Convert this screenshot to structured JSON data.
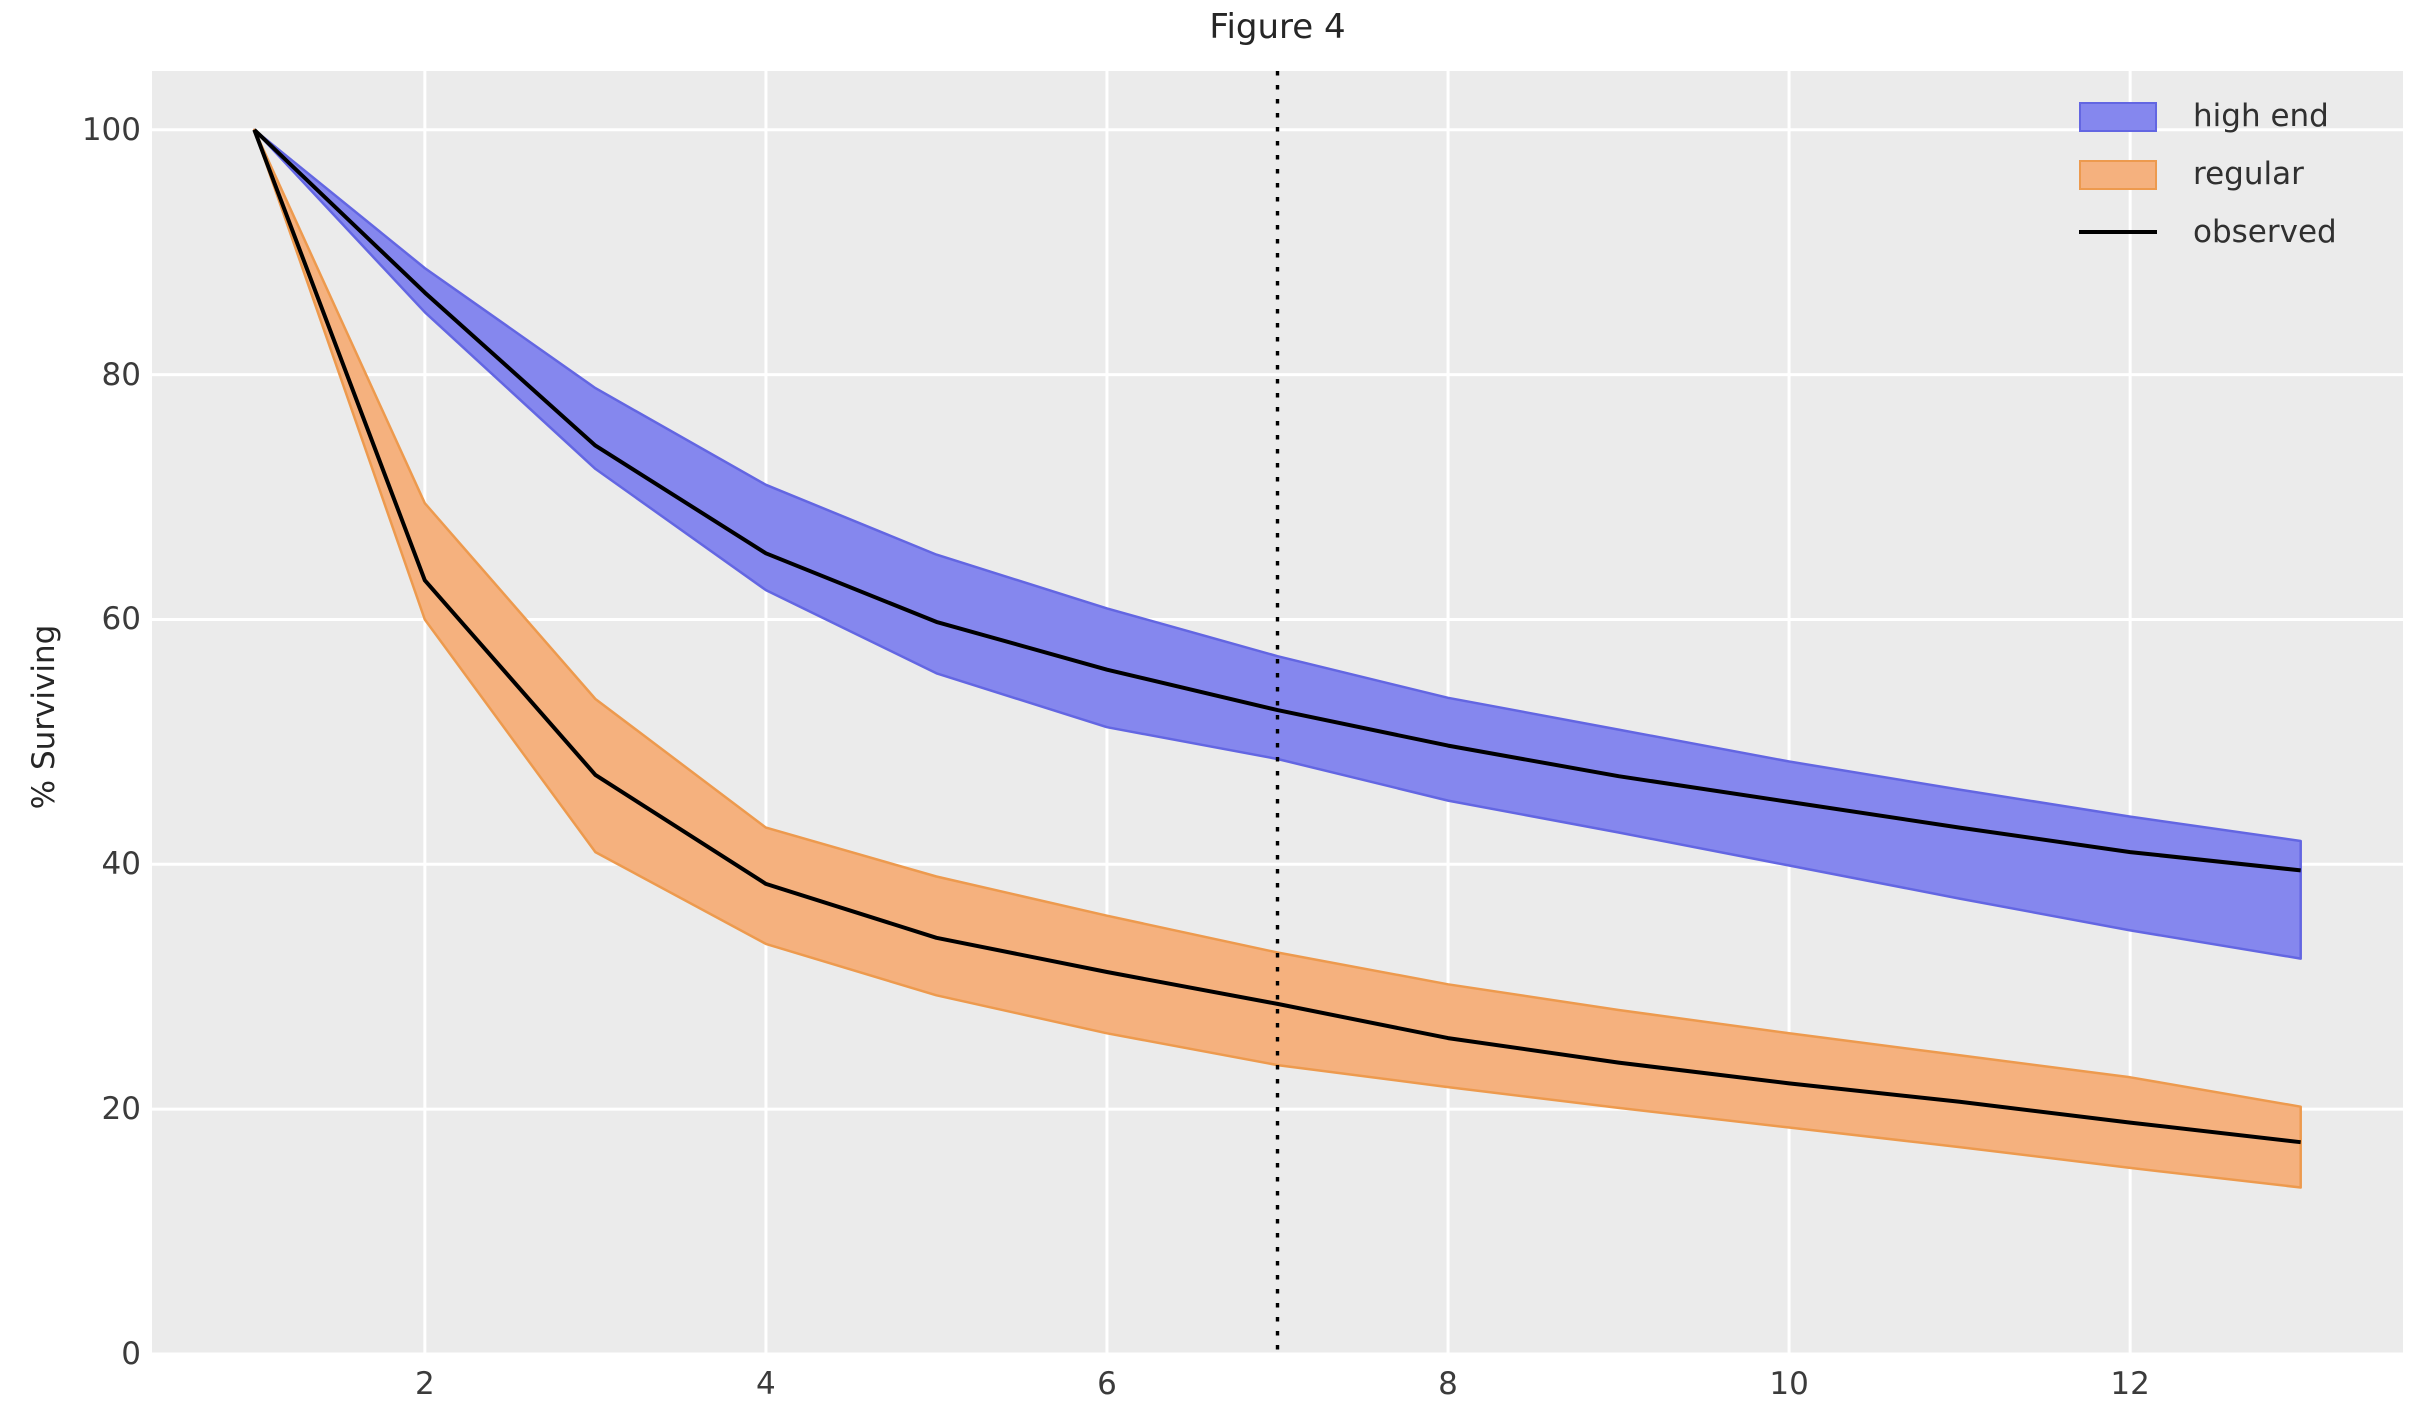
{
  "figure": {
    "title": "Figure 4",
    "ylabel": "% Surviving",
    "background": "#ffffff",
    "axes_background": "#ebebeb",
    "grid_color": "#ffffff",
    "tick_color": "#3b3b3b"
  },
  "legend": {
    "items": [
      {
        "label": "high end",
        "type": "patch",
        "fill": "#8587ee",
        "edge": "#6366e2"
      },
      {
        "label": "regular",
        "type": "patch",
        "fill": "#f5b17e",
        "edge": "#ed9a4e"
      },
      {
        "label": "observed",
        "type": "line",
        "color": "#000000"
      }
    ]
  },
  "chart_data": {
    "type": "line",
    "title": "Figure 4",
    "xlabel": "",
    "ylabel": "% Surviving",
    "grid": true,
    "legend_position": "upper right",
    "xlim": [
      0.4,
      13.6
    ],
    "ylim": [
      0,
      104.8
    ],
    "x_ticks": [
      2,
      4,
      6,
      8,
      10,
      12
    ],
    "y_ticks": [
      0,
      20,
      40,
      60,
      80,
      100
    ],
    "x": [
      1,
      2,
      3,
      4,
      5,
      6,
      7,
      8,
      9,
      10,
      11,
      12,
      13
    ],
    "vline": {
      "x": 7,
      "style": "dotted",
      "color": "#000000"
    },
    "bands": [
      {
        "name": "high end",
        "fill": "#8587ee",
        "edge": "#6366e2",
        "upper": [
          100,
          88.7,
          78.9,
          71.0,
          65.3,
          60.9,
          57.0,
          53.6,
          51.0,
          48.4,
          46.1,
          43.9,
          41.9
        ],
        "lower": [
          100,
          85.1,
          72.3,
          62.4,
          55.6,
          51.2,
          48.6,
          45.2,
          42.6,
          39.9,
          37.2,
          34.6,
          32.3
        ]
      },
      {
        "name": "regular",
        "fill": "#f5b17e",
        "edge": "#ed9a4e",
        "upper": [
          100,
          69.5,
          53.5,
          43.0,
          39.0,
          35.8,
          32.8,
          30.2,
          28.1,
          26.2,
          24.4,
          22.6,
          20.2
        ],
        "lower": [
          100,
          60.0,
          41.0,
          33.5,
          29.3,
          26.2,
          23.6,
          21.8,
          20.1,
          18.5,
          16.9,
          15.2,
          13.6
        ]
      }
    ],
    "series": [
      {
        "name": "observed (high end)",
        "color": "#000000",
        "values": [
          100,
          86.7,
          74.2,
          65.4,
          59.8,
          55.9,
          52.6,
          49.7,
          47.2,
          45.1,
          43.0,
          41.0,
          39.5
        ]
      },
      {
        "name": "observed (regular)",
        "color": "#000000",
        "values": [
          100,
          63.2,
          47.3,
          38.4,
          34.0,
          31.2,
          28.6,
          25.8,
          23.8,
          22.1,
          20.6,
          18.9,
          17.3
        ]
      }
    ]
  }
}
